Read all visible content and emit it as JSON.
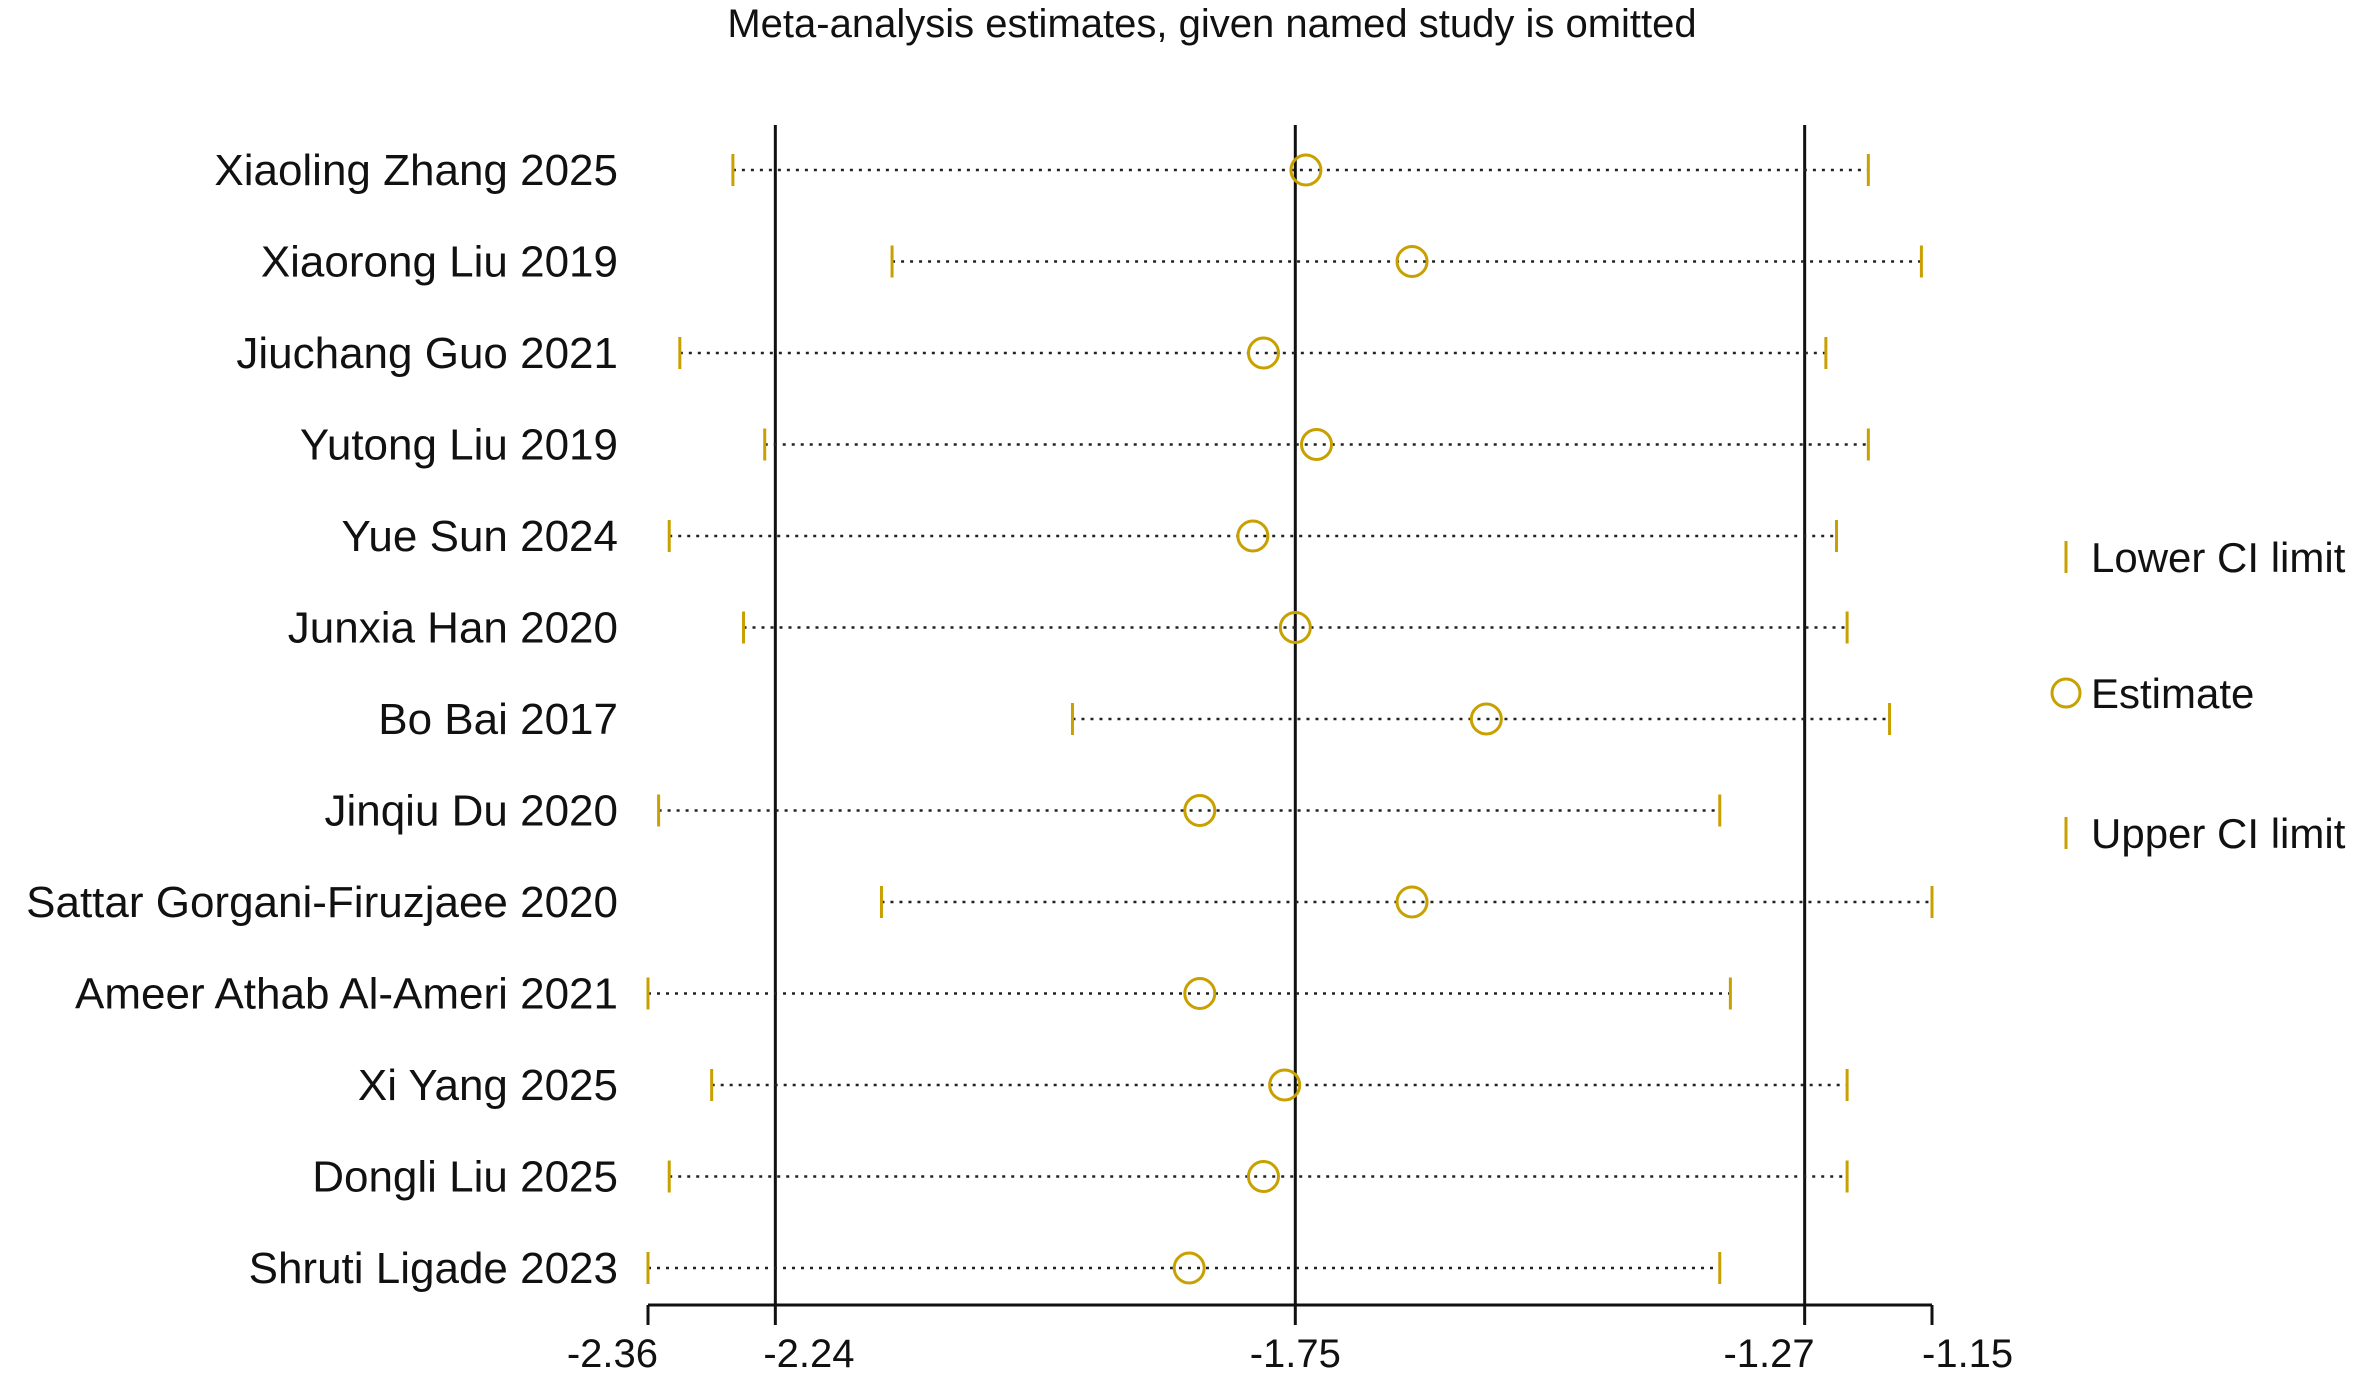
{
  "chart_data": {
    "type": "scatter",
    "title": "Meta-analysis estimates, given named study is omitted",
    "xlim": [
      -2.36,
      -1.15
    ],
    "x_ticks": [
      -2.36,
      -2.24,
      -1.75,
      -1.27,
      -1.15
    ],
    "x_tick_labels": [
      "-2.36",
      "-2.24",
      "-1.75",
      "-1.27",
      "-1.15"
    ],
    "reference_lines": [
      -2.24,
      -1.75,
      -1.27
    ],
    "legend": {
      "position": "right",
      "items": [
        {
          "label": "Lower CI limit",
          "marker": "tick"
        },
        {
          "label": "Estimate",
          "marker": "circle"
        },
        {
          "label": "Upper CI limit",
          "marker": "tick"
        }
      ]
    },
    "studies": [
      {
        "name": "Xiaoling Zhang 2025",
        "lower": -2.28,
        "estimate": -1.74,
        "upper": -1.21
      },
      {
        "name": "Xiaorong Liu 2019",
        "lower": -2.13,
        "estimate": -1.64,
        "upper": -1.16
      },
      {
        "name": "Jiuchang Guo 2021",
        "lower": -2.33,
        "estimate": -1.78,
        "upper": -1.25
      },
      {
        "name": "Yutong Liu 2019",
        "lower": -2.25,
        "estimate": -1.73,
        "upper": -1.21
      },
      {
        "name": "Yue Sun 2024",
        "lower": -2.34,
        "estimate": -1.79,
        "upper": -1.24
      },
      {
        "name": "Junxia Han 2020",
        "lower": -2.27,
        "estimate": -1.75,
        "upper": -1.23
      },
      {
        "name": "Bo Bai 2017",
        "lower": -1.96,
        "estimate": -1.57,
        "upper": -1.19
      },
      {
        "name": "Jinqiu Du 2020",
        "lower": -2.35,
        "estimate": -1.84,
        "upper": -1.35
      },
      {
        "name": "Sattar Gorgani-Firuzjaee 2020",
        "lower": -2.14,
        "estimate": -1.64,
        "upper": -1.15
      },
      {
        "name": "Ameer Athab Al-Ameri 2021",
        "lower": -2.36,
        "estimate": -1.84,
        "upper": -1.34
      },
      {
        "name": "Xi Yang 2025",
        "lower": -2.3,
        "estimate": -1.76,
        "upper": -1.23
      },
      {
        "name": "Dongli Liu 2025",
        "lower": -2.34,
        "estimate": -1.78,
        "upper": -1.23
      },
      {
        "name": "Shruti Ligade 2023",
        "lower": -2.36,
        "estimate": -1.85,
        "upper": -1.35
      }
    ],
    "colors": {
      "marker": "#c8a000",
      "axis": "#111111",
      "text": "#111111"
    }
  }
}
